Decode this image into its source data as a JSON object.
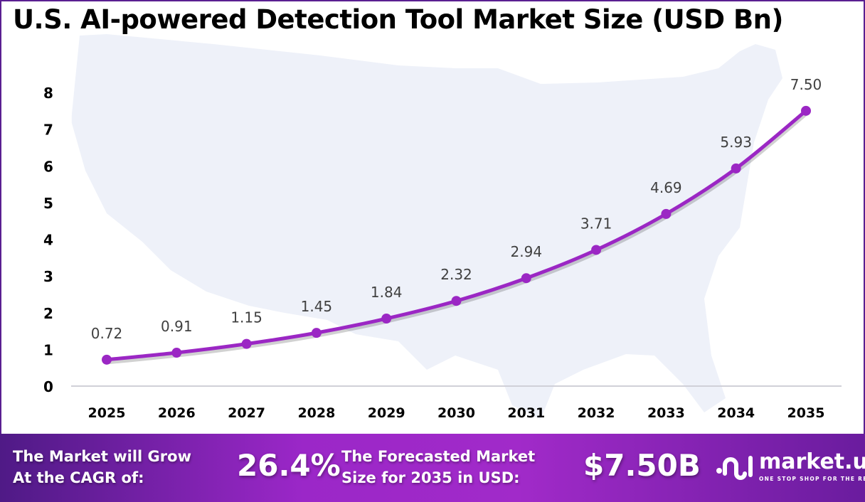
{
  "title": "U.S. AI-powered Detection Tool Market Size (USD Bn)",
  "colors": {
    "line": "#9b27c4",
    "map": "#eef1f9",
    "footer_start": "#4f1a86",
    "footer_mid": "#a12ac9",
    "border": "#5a1f91"
  },
  "chart_data": {
    "type": "line",
    "title": "U.S. AI-powered Detection Tool Market Size (USD Bn)",
    "categories": [
      "2025",
      "2026",
      "2027",
      "2028",
      "2029",
      "2030",
      "2031",
      "2032",
      "2033",
      "2034",
      "2035"
    ],
    "values": [
      0.72,
      0.91,
      1.15,
      1.45,
      1.84,
      2.32,
      2.94,
      3.71,
      4.69,
      5.93,
      7.5
    ],
    "data_labels": [
      "0.72",
      "0.91",
      "1.15",
      "1.45",
      "1.84",
      "2.32",
      "2.94",
      "3.71",
      "4.69",
      "5.93",
      "7.50"
    ],
    "yticks": [
      "0",
      "1",
      "2",
      "3",
      "4",
      "5",
      "6",
      "7",
      "8"
    ],
    "ylim": [
      0,
      8
    ],
    "grid": false,
    "legend": "none",
    "background": "U.S. map silhouette"
  },
  "footer": {
    "cagr_label_1": "The Market will Grow",
    "cagr_label_2": "At the CAGR of:",
    "cagr_value": "26.4%",
    "forecast_label_1": "The Forecasted Market",
    "forecast_label_2": "Size for 2035 in USD:",
    "forecast_value": "$7.50B",
    "logo_name": "market.us",
    "logo_tagline": "ONE STOP SHOP FOR THE REPORTS"
  }
}
